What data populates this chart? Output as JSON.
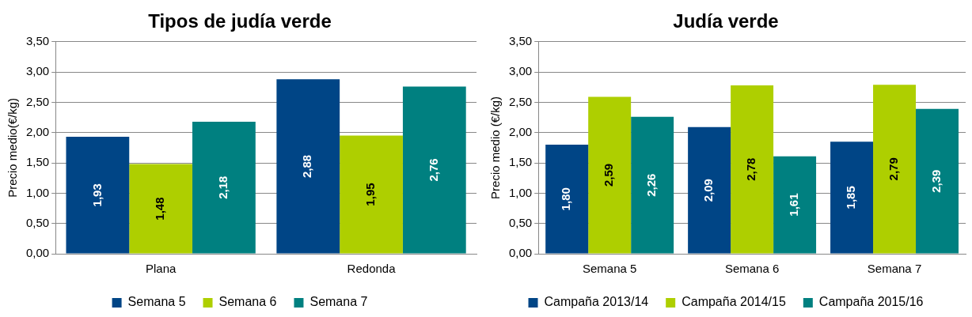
{
  "chart_data": [
    {
      "type": "bar",
      "title": "Tipos de judía verde",
      "ylabel": "Precio medio(€/kg)",
      "categories": [
        "Plana",
        "Redonda"
      ],
      "series": [
        {
          "name": "Semana 5",
          "color": "#004586",
          "values": [
            1.93,
            2.88
          ],
          "value_labels": [
            "1,93",
            "2,88"
          ]
        },
        {
          "name": "Semana 6",
          "color": "#aecf00",
          "values": [
            1.48,
            1.95
          ],
          "value_labels": [
            "1,48",
            "1,95"
          ]
        },
        {
          "name": "Semana 7",
          "color": "#008080",
          "values": [
            2.18,
            2.76
          ],
          "value_labels": [
            "2,18",
            "2,76"
          ]
        }
      ],
      "ylim": [
        0,
        3.5
      ],
      "yticks": [
        {
          "value": 0,
          "label": "0,00"
        },
        {
          "value": 0.5,
          "label": "0,50"
        },
        {
          "value": 1,
          "label": "1,00"
        },
        {
          "value": 1.5,
          "label": "1,50"
        },
        {
          "value": 2,
          "label": "2,00"
        },
        {
          "value": 2.5,
          "label": "2,50"
        },
        {
          "value": 3,
          "label": "3,00"
        },
        {
          "value": 3.5,
          "label": "3,50"
        }
      ],
      "grid": "y",
      "legend": "bottom"
    },
    {
      "type": "bar",
      "title": "Judía verde",
      "ylabel": "Precio medio (€/kg)",
      "categories": [
        "Semana 5",
        "Semana 6",
        "Semana 7"
      ],
      "series": [
        {
          "name": "Campaña 2013/14",
          "color": "#004586",
          "values": [
            1.8,
            2.09,
            1.85
          ],
          "value_labels": [
            "1,80",
            "2,09",
            "1,85"
          ]
        },
        {
          "name": "Campaña 2014/15",
          "color": "#aecf00",
          "values": [
            2.59,
            2.78,
            2.79
          ],
          "value_labels": [
            "2,59",
            "2,78",
            "2,79"
          ]
        },
        {
          "name": "Campaña 2015/16",
          "color": "#008080",
          "values": [
            2.26,
            1.61,
            2.39
          ],
          "value_labels": [
            "2,26",
            "1,61",
            "2,39"
          ]
        }
      ],
      "ylim": [
        0,
        3.5
      ],
      "yticks": [
        {
          "value": 0,
          "label": "0,00"
        },
        {
          "value": 0.5,
          "label": "0,50"
        },
        {
          "value": 1,
          "label": "1,00"
        },
        {
          "value": 1.5,
          "label": "1,50"
        },
        {
          "value": 2,
          "label": "2,00"
        },
        {
          "value": 2.5,
          "label": "2,50"
        },
        {
          "value": 3,
          "label": "3,00"
        },
        {
          "value": 3.5,
          "label": "3,50"
        }
      ],
      "grid": "y",
      "legend": "bottom"
    }
  ]
}
